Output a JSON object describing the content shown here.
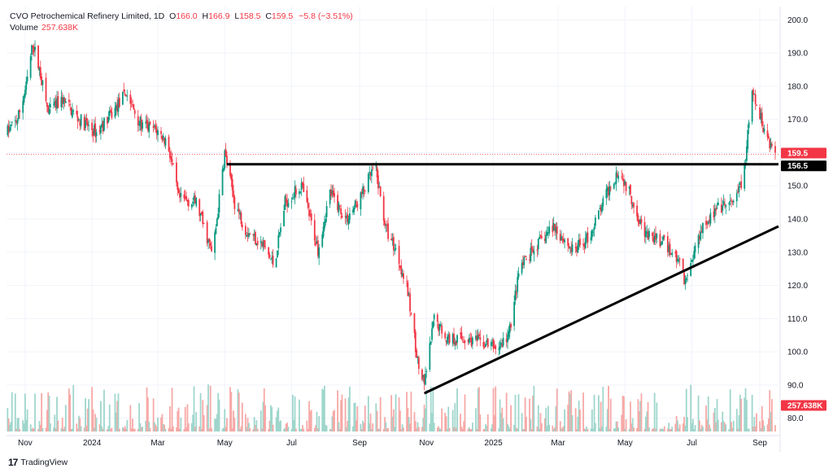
{
  "header": {
    "title": "CVO Petrochemical Refinery Limited, 1D",
    "o_label": "O",
    "o_value": "166.0",
    "h_label": "H",
    "h_value": "166.9",
    "l_label": "L",
    "l_value": "158.5",
    "c_label": "C",
    "c_value": "159.5",
    "change": "−5.8 (−3.51%)",
    "volume_label": "Volume",
    "volume_value": "257.638K"
  },
  "brand": {
    "logo": "17",
    "name": "TradingView"
  },
  "colors": {
    "up": "#089981",
    "down": "#f23645",
    "vol_up": "#9fd6cc",
    "vol_down": "#f7a9a7",
    "line": "#000000",
    "axis_text": "#131722"
  },
  "chart_data": {
    "type": "candlestick",
    "y_range": [
      76,
      204
    ],
    "y_ticks": [
      "200.0",
      "190.0",
      "180.0",
      "170.0",
      "160.0",
      "150.0",
      "140.0",
      "130.0",
      "120.0",
      "110.0",
      "100.0",
      "90.0",
      "80.0"
    ],
    "x_ticks": [
      {
        "date": "2023-11-01",
        "label": "Nov"
      },
      {
        "date": "2024-01-01",
        "label": "2024"
      },
      {
        "date": "2024-03-01",
        "label": "Mar"
      },
      {
        "date": "2024-05-01",
        "label": "May"
      },
      {
        "date": "2024-07-01",
        "label": "Jul"
      },
      {
        "date": "2024-09-01",
        "label": "Sep"
      },
      {
        "date": "2024-11-01",
        "label": "Nov"
      },
      {
        "date": "2025-01-01",
        "label": "2025"
      },
      {
        "date": "2025-03-01",
        "label": "Mar"
      },
      {
        "date": "2025-05-01",
        "label": "May"
      },
      {
        "date": "2025-07-01",
        "label": "Jul"
      },
      {
        "date": "2025-09-01",
        "label": "Sep"
      }
    ],
    "x_range": [
      "2023-10-15",
      "2025-09-18"
    ],
    "price_path": [
      [
        "2023-10-15",
        166
      ],
      [
        "2023-10-25",
        170
      ],
      [
        "2023-11-02",
        180
      ],
      [
        "2023-11-08",
        193
      ],
      [
        "2023-11-14",
        185
      ],
      [
        "2023-11-22",
        172
      ],
      [
        "2023-12-05",
        176
      ],
      [
        "2023-12-20",
        170
      ],
      [
        "2024-01-05",
        166
      ],
      [
        "2024-01-20",
        172
      ],
      [
        "2024-02-01",
        178
      ],
      [
        "2024-02-15",
        168
      ],
      [
        "2024-02-28",
        167
      ],
      [
        "2024-03-10",
        163
      ],
      [
        "2024-03-20",
        146
      ],
      [
        "2024-04-05",
        145
      ],
      [
        "2024-04-20",
        129
      ],
      [
        "2024-05-01",
        160
      ],
      [
        "2024-05-10",
        145
      ],
      [
        "2024-05-20",
        137
      ],
      [
        "2024-06-05",
        132
      ],
      [
        "2024-06-15",
        126
      ],
      [
        "2024-06-25",
        145
      ],
      [
        "2024-07-10",
        150
      ],
      [
        "2024-07-25",
        131
      ],
      [
        "2024-08-05",
        148
      ],
      [
        "2024-08-20",
        140
      ],
      [
        "2024-09-01",
        146
      ],
      [
        "2024-09-15",
        156
      ],
      [
        "2024-09-25",
        137
      ],
      [
        "2024-10-05",
        130
      ],
      [
        "2024-10-15",
        118
      ],
      [
        "2024-10-25",
        95
      ],
      [
        "2024-10-30",
        90
      ],
      [
        "2024-11-08",
        110
      ],
      [
        "2024-11-20",
        104
      ],
      [
        "2024-12-05",
        104
      ],
      [
        "2024-12-20",
        103
      ],
      [
        "2025-01-05",
        101
      ],
      [
        "2025-01-15",
        105
      ],
      [
        "2025-01-25",
        125
      ],
      [
        "2025-02-10",
        132
      ],
      [
        "2025-02-25",
        138
      ],
      [
        "2025-03-15",
        130
      ],
      [
        "2025-03-30",
        135
      ],
      [
        "2025-04-15",
        148
      ],
      [
        "2025-04-25",
        155
      ],
      [
        "2025-05-05",
        148
      ],
      [
        "2025-05-20",
        135
      ],
      [
        "2025-06-05",
        133
      ],
      [
        "2025-06-20",
        127
      ],
      [
        "2025-06-25",
        121
      ],
      [
        "2025-07-10",
        138
      ],
      [
        "2025-07-25",
        143
      ],
      [
        "2025-08-10",
        145
      ],
      [
        "2025-08-18",
        155
      ],
      [
        "2025-08-25",
        178
      ],
      [
        "2025-09-05",
        167
      ],
      [
        "2025-09-15",
        159.5
      ]
    ],
    "current_price": {
      "value": 159.5,
      "label": "159.5"
    },
    "horizontal_level": {
      "value": 156.5,
      "label": "156.5",
      "from": "2024-05-03",
      "to": "2025-09-18"
    },
    "trendline": {
      "from": [
        "2024-10-30",
        87.5
      ],
      "to": [
        "2025-09-18",
        137.8
      ]
    },
    "volume_label": "257.638K"
  }
}
